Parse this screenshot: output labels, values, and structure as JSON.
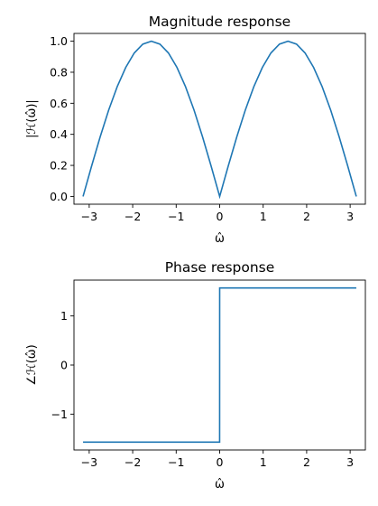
{
  "chart_data": [
    {
      "type": "line",
      "title": "Magnitude response",
      "xlabel": "ω̂",
      "ylabel": "|ℋ(ω̂)|",
      "xlim": [
        -3.35,
        3.35
      ],
      "ylim": [
        -0.05,
        1.05
      ],
      "xticks": [
        -3,
        -2,
        -1,
        0,
        1,
        2,
        3
      ],
      "xtick_labels": [
        "−3",
        "−2",
        "−1",
        "0",
        "1",
        "2",
        "3"
      ],
      "yticks": [
        0.0,
        0.2,
        0.4,
        0.6,
        0.8,
        1.0
      ],
      "ytick_labels": [
        "0.0",
        "0.2",
        "0.4",
        "0.6",
        "0.8",
        "1.0"
      ],
      "grid": false,
      "color": "#1f77b4",
      "series": [
        {
          "x": [
            -3.1416,
            -2.9452,
            -2.7489,
            -2.5525,
            -2.3562,
            -2.1598,
            -1.9635,
            -1.7671,
            -1.5708,
            -1.3744,
            -1.1781,
            -0.9817,
            -0.7854,
            -0.589,
            -0.3927,
            -0.1963,
            0.0,
            0.1963,
            0.3927,
            0.589,
            0.7854,
            0.9817,
            1.1781,
            1.3744,
            1.5708,
            1.7671,
            1.9635,
            2.1598,
            2.3562,
            2.5525,
            2.7489,
            2.9452,
            3.1416
          ],
          "y": [
            0.0,
            0.195,
            0.383,
            0.556,
            0.707,
            0.831,
            0.924,
            0.981,
            1.0,
            0.981,
            0.924,
            0.831,
            0.707,
            0.556,
            0.383,
            0.195,
            0.0,
            0.195,
            0.383,
            0.556,
            0.707,
            0.831,
            0.924,
            0.981,
            1.0,
            0.981,
            0.924,
            0.831,
            0.707,
            0.556,
            0.383,
            0.195,
            0.0
          ]
        }
      ]
    },
    {
      "type": "line",
      "title": "Phase response",
      "xlabel": "ω̂",
      "ylabel": "∠ℋ(ω̂)",
      "xlim": [
        -3.35,
        3.35
      ],
      "ylim": [
        -1.73,
        1.73
      ],
      "xticks": [
        -3,
        -2,
        -1,
        0,
        1,
        2,
        3
      ],
      "xtick_labels": [
        "−3",
        "−2",
        "−1",
        "0",
        "1",
        "2",
        "3"
      ],
      "yticks": [
        -1,
        0,
        1
      ],
      "ytick_labels": [
        "−1",
        "0",
        "1"
      ],
      "grid": false,
      "color": "#1f77b4",
      "series": [
        {
          "x": [
            -3.1416,
            -0.001,
            0.0,
            3.1416
          ],
          "y": [
            -1.5708,
            -1.5708,
            1.5708,
            1.5708
          ]
        }
      ]
    }
  ]
}
